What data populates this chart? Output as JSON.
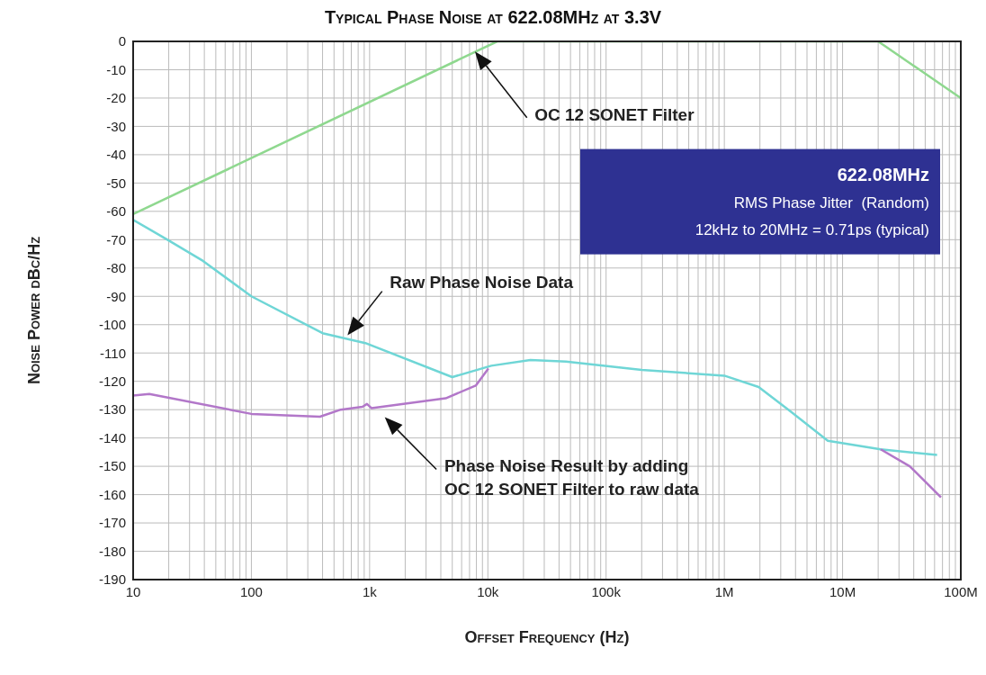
{
  "chart_data": {
    "type": "line",
    "title": "Typical Phase Noise at 622.08MHz at 3.3V",
    "xlabel": "Offset Frequency (Hz)",
    "ylabel": "Noise Power dBc/Hz",
    "log": "x",
    "grid": true,
    "xlim": [
      10,
      100000000
    ],
    "ylim": [
      -190,
      0
    ],
    "xticks": [
      {
        "value": 10,
        "label": "10"
      },
      {
        "value": 20,
        "label": null
      },
      {
        "value": 30,
        "label": null
      },
      {
        "value": 40,
        "label": null
      },
      {
        "value": 50,
        "label": null
      },
      {
        "value": 60,
        "label": null
      },
      {
        "value": 70,
        "label": null
      },
      {
        "value": 80,
        "label": null
      },
      {
        "value": 90,
        "label": null
      },
      {
        "value": 100,
        "label": "100"
      },
      {
        "value": 200,
        "label": null
      },
      {
        "value": 300,
        "label": null
      },
      {
        "value": 400,
        "label": null
      },
      {
        "value": 500,
        "label": null
      },
      {
        "value": 600,
        "label": null
      },
      {
        "value": 700,
        "label": null
      },
      {
        "value": 800,
        "label": null
      },
      {
        "value": 900,
        "label": null
      },
      {
        "value": 1000,
        "label": "1k"
      },
      {
        "value": 2000,
        "label": null
      },
      {
        "value": 3000,
        "label": null
      },
      {
        "value": 4000,
        "label": null
      },
      {
        "value": 5000,
        "label": null
      },
      {
        "value": 6000,
        "label": null
      },
      {
        "value": 7000,
        "label": null
      },
      {
        "value": 8000,
        "label": null
      },
      {
        "value": 9000,
        "label": null
      },
      {
        "value": 10000,
        "label": "10k"
      },
      {
        "value": 20000,
        "label": null
      },
      {
        "value": 30000,
        "label": null
      },
      {
        "value": 40000,
        "label": null
      },
      {
        "value": 50000,
        "label": null
      },
      {
        "value": 60000,
        "label": null
      },
      {
        "value": 70000,
        "label": null
      },
      {
        "value": 80000,
        "label": null
      },
      {
        "value": 90000,
        "label": null
      },
      {
        "value": 100000,
        "label": "100k"
      },
      {
        "value": 200000,
        "label": null
      },
      {
        "value": 300000,
        "label": null
      },
      {
        "value": 400000,
        "label": null
      },
      {
        "value": 500000,
        "label": null
      },
      {
        "value": 600000,
        "label": null
      },
      {
        "value": 700000,
        "label": null
      },
      {
        "value": 800000,
        "label": null
      },
      {
        "value": 900000,
        "label": null
      },
      {
        "value": 1000000,
        "label": "1M"
      },
      {
        "value": 2000000,
        "label": null
      },
      {
        "value": 3000000,
        "label": null
      },
      {
        "value": 4000000,
        "label": null
      },
      {
        "value": 5000000,
        "label": null
      },
      {
        "value": 6000000,
        "label": null
      },
      {
        "value": 7000000,
        "label": null
      },
      {
        "value": 8000000,
        "label": null
      },
      {
        "value": 9000000,
        "label": null
      },
      {
        "value": 10000000,
        "label": "10M"
      },
      {
        "value": 20000000,
        "label": null
      },
      {
        "value": 30000000,
        "label": null
      },
      {
        "value": 40000000,
        "label": null
      },
      {
        "value": 50000000,
        "label": null
      },
      {
        "value": 60000000,
        "label": null
      },
      {
        "value": 70000000,
        "label": null
      },
      {
        "value": 80000000,
        "label": null
      },
      {
        "value": 90000000,
        "label": null
      },
      {
        "value": 100000000,
        "label": "100M"
      }
    ],
    "yticks": [
      0,
      -10,
      -20,
      -30,
      -40,
      -50,
      -60,
      -70,
      -80,
      -90,
      -100,
      -110,
      -120,
      -130,
      -140,
      -150,
      -160,
      -170,
      -180,
      -190
    ],
    "series": [
      {
        "color": "#8fd88f",
        "x": [
          10,
          12000,
          20000000,
          100000000
        ],
        "values": [
          -61,
          0,
          0,
          -20
        ]
      },
      {
        "color": "#6fd6d6",
        "x": [
          10,
          19.5,
          39,
          100,
          400,
          920,
          5000,
          10700,
          22900,
          45800,
          200000,
          1000000,
          1950000,
          3600000,
          7500000,
          21000000,
          63000000
        ],
        "values": [
          -63,
          -70,
          -77.5,
          -90,
          -103,
          -106.5,
          -118.5,
          -114.5,
          -112.5,
          -113,
          -116,
          -118,
          -122,
          -130.5,
          -141,
          -144,
          -146
        ]
      },
      {
        "color": "#b277c9",
        "x": [
          10,
          13.7,
          100,
          380,
          570,
          870,
          950,
          1040,
          4400,
          7900,
          10100,
          1000000,
          21000000,
          37000000,
          68000000
        ],
        "values": [
          -125,
          -124.5,
          -131.5,
          -132.5,
          -130,
          -129,
          -128,
          -129.5,
          -126,
          -121.5,
          -115.5,
          null,
          -144,
          -150,
          -161
        ]
      }
    ],
    "annotations": [
      "OC 12 SONET Filter",
      "Raw Phase Noise Data",
      "Phase Noise Result by adding\nOC 12 SONET Filter to raw data",
      "622.08MHz",
      "RMS Phase Jitter  (Random)",
      "12kHz to 20MHz = 0.71ps (typical)"
    ]
  }
}
